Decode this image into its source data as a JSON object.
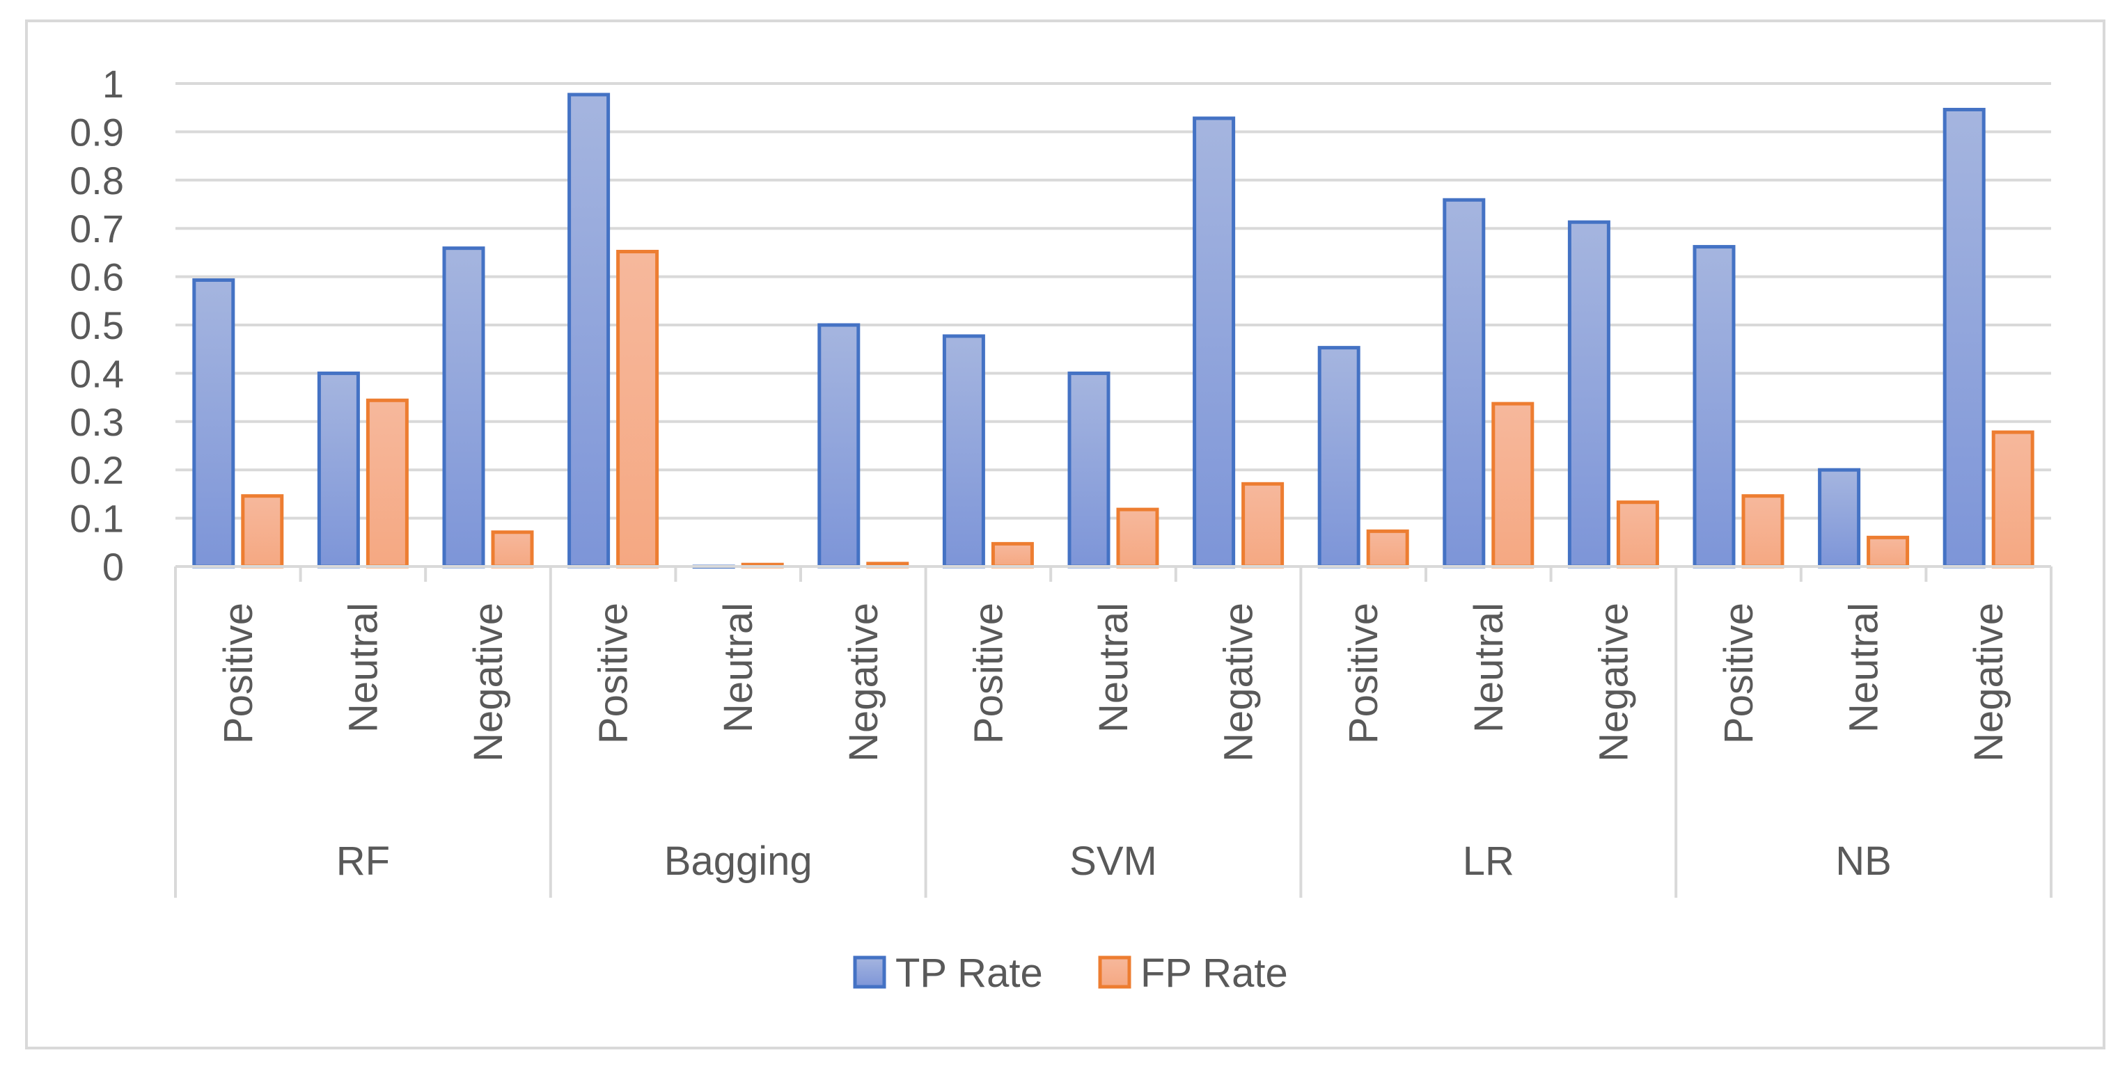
{
  "chart_data": {
    "type": "bar",
    "title": "",
    "xlabel": "",
    "ylabel": "",
    "ylim": [
      0,
      1
    ],
    "yticks": [
      "0",
      "0.1",
      "0.2",
      "0.3",
      "0.4",
      "0.5",
      "0.6",
      "0.7",
      "0.8",
      "0.9",
      "1"
    ],
    "groups": [
      "RF",
      "Bagging",
      "SVM",
      "LR",
      "NB"
    ],
    "subcategories": [
      "Positive",
      "Neutral",
      "Negative"
    ],
    "series": [
      {
        "name": "TP Rate",
        "color": "#4472c4",
        "values": [
          0.593,
          0.4,
          0.659,
          0.977,
          0,
          0.5,
          0.477,
          0.4,
          0.928,
          0.453,
          0.759,
          0.713,
          0.662,
          0.2,
          0.946
        ]
      },
      {
        "name": "FP Rate",
        "color": "#ed7d31",
        "values": [
          0.146,
          0.344,
          0.071,
          0.652,
          0.004,
          0.006,
          0.047,
          0.118,
          0.171,
          0.073,
          0.337,
          0.133,
          0.146,
          0.06,
          0.278
        ]
      }
    ],
    "legend_position": "bottom",
    "grid": true
  }
}
